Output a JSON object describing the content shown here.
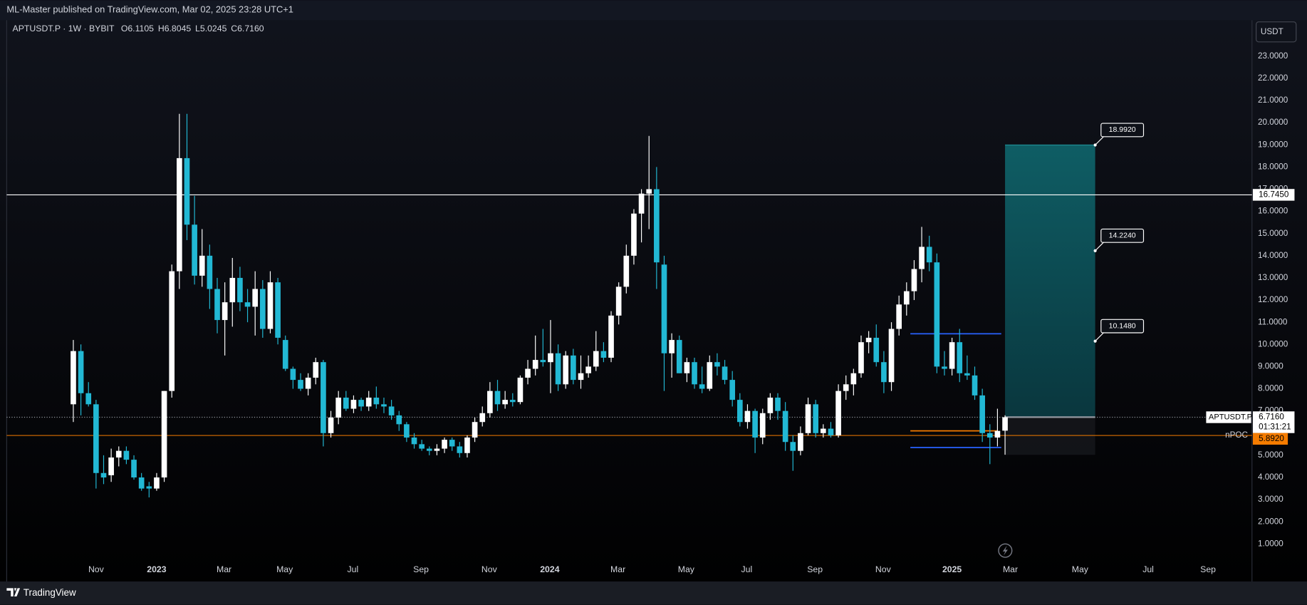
{
  "header": {
    "published": "ML-Master published on TradingView.com, Mar 02, 2025 23:28 UTC+1"
  },
  "footer": {
    "brand": "TradingView"
  },
  "currency_button": "USDT",
  "chart_data": {
    "type": "candlestick",
    "title": "APTUSDT.P · 1W · BYBIT",
    "ohlc_legend": [
      {
        "key": "O",
        "label": "6.1105"
      },
      {
        "key": "H",
        "label": "6.8045"
      },
      {
        "key": "L",
        "label": "5.0245"
      },
      {
        "key": "C",
        "label": "6.7160"
      }
    ],
    "up_color": "#ffffff",
    "down_color": "#22b8d4",
    "grid": false,
    "open": [
      7.3,
      9.7,
      7.8,
      7.3,
      4.2,
      4.1,
      4.9,
      5.2,
      4.8,
      4.0,
      3.6,
      3.5,
      4.0,
      7.9,
      13.3,
      18.4,
      15.4,
      13.1,
      14.0,
      12.5,
      11.1,
      11.9,
      13.0,
      11.9,
      11.7,
      12.5,
      10.7,
      12.8,
      10.2,
      8.9,
      8.4,
      8.0,
      8.5,
      9.2,
      6.0,
      6.7,
      7.6,
      7.1,
      7.5,
      7.2,
      7.6,
      7.3,
      7.2,
      6.8,
      6.4,
      5.8,
      5.5,
      5.3,
      5.2,
      5.3,
      5.7,
      5.4,
      5.1,
      5.8,
      6.5,
      6.9,
      7.9,
      7.3,
      7.5,
      7.4,
      8.5,
      8.9,
      9.3,
      9.2,
      9.6,
      8.2,
      9.5,
      8.4,
      8.7,
      9.0,
      9.7,
      9.4,
      11.3,
      12.6,
      14.0,
      15.9,
      16.8,
      17.0,
      13.6,
      9.6,
      10.2,
      8.7,
      9.2,
      8.2,
      8.0,
      9.2,
      9.0,
      8.4,
      7.5,
      6.5,
      7.0,
      5.8,
      6.9,
      7.6,
      7.0,
      5.6,
      5.2,
      6.0,
      7.3,
      6.0,
      6.2,
      5.9,
      7.9,
      8.2,
      8.7,
      10.1,
      10.3,
      9.2,
      8.3,
      10.7,
      11.8,
      12.4,
      13.4,
      14.4,
      13.7,
      9.0,
      8.9,
      10.1,
      8.7,
      8.6,
      7.7,
      6.0,
      5.8,
      6.1105
    ],
    "high": [
      10.2,
      10.0,
      8.3,
      7.5,
      5.0,
      5.3,
      5.4,
      5.4,
      5.0,
      4.2,
      3.8,
      4.2,
      7.9,
      13.6,
      20.4,
      20.4,
      16.7,
      15.2,
      14.5,
      13.0,
      12.8,
      13.9,
      13.5,
      12.5,
      13.3,
      12.9,
      13.3,
      13.0,
      10.4,
      9.0,
      8.7,
      8.7,
      9.4,
      9.3,
      7.0,
      7.9,
      7.9,
      7.7,
      7.6,
      7.9,
      8.1,
      7.6,
      7.5,
      7.0,
      6.5,
      6.0,
      5.7,
      5.4,
      5.5,
      5.8,
      5.8,
      5.6,
      5.9,
      6.7,
      7.2,
      8.3,
      8.4,
      7.9,
      7.8,
      8.6,
      9.3,
      10.4,
      10.7,
      11.1,
      10.0,
      9.7,
      9.8,
      9.5,
      9.5,
      10.6,
      10.1,
      11.5,
      12.8,
      14.5,
      16.1,
      17.0,
      19.4,
      18.0,
      14.0,
      10.5,
      10.4,
      9.4,
      9.4,
      9.0,
      9.5,
      9.6,
      9.3,
      8.8,
      7.8,
      7.3,
      7.1,
      7.1,
      7.8,
      7.8,
      7.4,
      5.9,
      6.3,
      7.6,
      7.5,
      6.4,
      6.5,
      8.2,
      8.6,
      8.9,
      10.4,
      10.6,
      10.9,
      9.7,
      11.0,
      12.2,
      12.8,
      13.8,
      15.3,
      14.9,
      14.1,
      9.7,
      10.3,
      10.7,
      9.5,
      9.0,
      8.0,
      6.4,
      7.1,
      6.8045
    ],
    "low": [
      6.5,
      6.8,
      7.2,
      3.5,
      3.7,
      3.8,
      4.5,
      4.6,
      3.9,
      3.4,
      3.1,
      3.4,
      3.8,
      7.6,
      12.5,
      14.7,
      12.7,
      12.6,
      11.6,
      10.5,
      9.5,
      10.8,
      11.5,
      11.0,
      10.4,
      10.3,
      10.5,
      10.0,
      8.8,
      8.0,
      7.9,
      7.7,
      8.2,
      5.4,
      5.8,
      6.4,
      7.0,
      6.9,
      7.0,
      7.0,
      7.1,
      6.9,
      6.6,
      6.1,
      5.6,
      5.3,
      5.2,
      5.0,
      5.0,
      5.1,
      5.2,
      4.9,
      4.9,
      5.6,
      6.3,
      6.7,
      7.0,
      7.1,
      7.2,
      7.3,
      8.2,
      8.6,
      9.0,
      7.8,
      7.9,
      8.0,
      8.2,
      8.0,
      8.5,
      8.8,
      9.2,
      9.2,
      10.9,
      12.3,
      13.6,
      14.6,
      15.2,
      12.5,
      7.9,
      8.5,
      8.7,
      8.3,
      8.0,
      7.8,
      7.9,
      8.6,
      8.2,
      7.2,
      6.3,
      6.2,
      5.1,
      5.5,
      6.6,
      6.6,
      5.2,
      4.3,
      5.0,
      5.9,
      5.8,
      5.8,
      5.8,
      5.8,
      7.5,
      7.7,
      8.5,
      9.6,
      9.0,
      7.8,
      7.9,
      10.4,
      11.3,
      12.0,
      12.8,
      13.3,
      8.7,
      8.6,
      8.6,
      8.3,
      8.4,
      7.5,
      5.6,
      4.6,
      5.4,
      5.0245
    ],
    "close": [
      9.7,
      7.8,
      7.3,
      4.2,
      4.0,
      4.9,
      5.2,
      4.8,
      4.0,
      3.5,
      3.5,
      4.0,
      7.9,
      13.3,
      18.4,
      15.4,
      13.1,
      14.0,
      12.5,
      11.1,
      11.9,
      13.0,
      11.9,
      11.7,
      12.5,
      10.7,
      12.8,
      10.3,
      8.9,
      8.4,
      8.0,
      8.5,
      9.2,
      6.0,
      6.7,
      7.6,
      7.1,
      7.5,
      7.2,
      7.6,
      7.3,
      7.2,
      6.8,
      6.4,
      5.8,
      5.5,
      5.3,
      5.2,
      5.3,
      5.7,
      5.4,
      5.1,
      5.8,
      6.5,
      6.9,
      7.9,
      7.3,
      7.5,
      7.4,
      8.5,
      8.9,
      9.3,
      9.2,
      9.6,
      8.2,
      9.5,
      8.4,
      8.7,
      9.0,
      9.7,
      9.4,
      11.3,
      12.6,
      14.0,
      15.9,
      16.8,
      17.0,
      13.7,
      9.6,
      10.2,
      8.7,
      9.2,
      8.2,
      8.0,
      9.2,
      9.0,
      8.4,
      7.5,
      6.5,
      7.0,
      5.8,
      6.9,
      7.6,
      7.0,
      5.6,
      5.2,
      6.0,
      7.3,
      6.0,
      6.2,
      5.9,
      7.9,
      8.2,
      8.7,
      10.1,
      10.3,
      9.2,
      8.3,
      10.7,
      11.8,
      12.4,
      13.4,
      14.4,
      13.7,
      9.0,
      8.9,
      10.1,
      8.7,
      8.6,
      7.7,
      6.0,
      5.8,
      6.1,
      6.716
    ],
    "xlim": [
      -8.8,
      155.6
    ],
    "xticks": [
      {
        "value": 3,
        "label": "Nov"
      },
      {
        "value": 11,
        "label": "2023"
      },
      {
        "value": 19.9,
        "label": "Mar"
      },
      {
        "value": 27.9,
        "label": "May"
      },
      {
        "value": 36.9,
        "label": "Jul"
      },
      {
        "value": 45.9,
        "label": "Sep"
      },
      {
        "value": 54.9,
        "label": "Nov"
      },
      {
        "value": 62.9,
        "label": "2024"
      },
      {
        "value": 71.9,
        "label": "Mar"
      },
      {
        "value": 80.9,
        "label": "May"
      },
      {
        "value": 88.9,
        "label": "Jul"
      },
      {
        "value": 97.9,
        "label": "Sep"
      },
      {
        "value": 106.9,
        "label": "Nov"
      },
      {
        "value": 116,
        "label": "2025"
      },
      {
        "value": 123.7,
        "label": "Mar"
      },
      {
        "value": 132.9,
        "label": "May"
      },
      {
        "value": 141.9,
        "label": "Jul"
      },
      {
        "value": 149.8,
        "label": "Sep"
      }
    ],
    "ylim": [
      0.25,
      24.47
    ],
    "yticks": [
      {
        "value": 1,
        "label": "1.0000"
      },
      {
        "value": 2,
        "label": "2.0000"
      },
      {
        "value": 3,
        "label": "3.0000"
      },
      {
        "value": 4,
        "label": "4.0000"
      },
      {
        "value": 5,
        "label": "5.0000"
      },
      {
        "value": 6,
        "label": "6.0000"
      },
      {
        "value": 7,
        "label": "7.0000"
      },
      {
        "value": 8,
        "label": "8.0000"
      },
      {
        "value": 9,
        "label": "9.0000"
      },
      {
        "value": 10,
        "label": "10.0000"
      },
      {
        "value": 11,
        "label": "11.0000"
      },
      {
        "value": 12,
        "label": "12.0000"
      },
      {
        "value": 13,
        "label": "13.0000"
      },
      {
        "value": 14,
        "label": "14.0000"
      },
      {
        "value": 15,
        "label": "15.0000"
      },
      {
        "value": 16,
        "label": "16.0000"
      },
      {
        "value": 17,
        "label": "17.0000"
      },
      {
        "value": 18,
        "label": "18.0000"
      },
      {
        "value": 19,
        "label": "19.0000"
      },
      {
        "value": 20,
        "label": "20.0000"
      },
      {
        "value": 21,
        "label": "21.0000"
      },
      {
        "value": 22,
        "label": "22.0000"
      },
      {
        "value": 23,
        "label": "23.0000"
      }
    ],
    "resistance": {
      "value": 16.745,
      "label": "16.7450",
      "color": "#ffffff"
    },
    "npoc": {
      "name": "nPOC",
      "value": 5.892,
      "label": "5.8920",
      "color": "#f57c00"
    },
    "last_price": {
      "symbol": "APTUSDT.P",
      "label": "6.7160",
      "countdown": "01:31:21"
    },
    "short_levels": [
      {
        "value": 10.48,
        "start": 110.5,
        "end": 122.5,
        "color": "#2962ff"
      },
      {
        "value": 6.1,
        "start": 110.5,
        "end": 122,
        "color": "#f57c00"
      },
      {
        "value": 5.35,
        "start": 110.5,
        "end": 122.5,
        "color": "#2962ff"
      }
    ],
    "position": {
      "entry": 6.72,
      "stop": 5.02,
      "start": 123,
      "end": 134.9,
      "targets": [
        {
          "value": 18.992,
          "label": "18.9920"
        },
        {
          "value": 14.224,
          "label": "14.2240"
        },
        {
          "value": 10.148,
          "label": "10.1480"
        }
      ]
    }
  }
}
